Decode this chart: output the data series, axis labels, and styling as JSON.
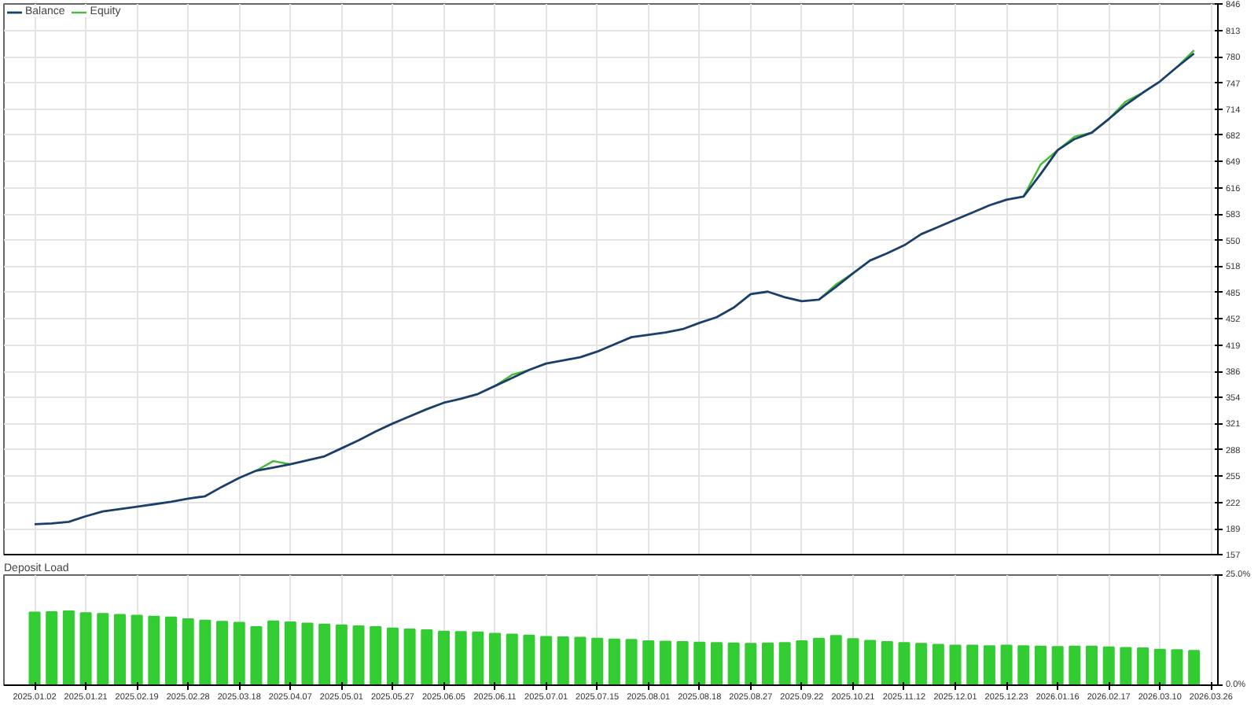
{
  "chart_data": [
    {
      "type": "line",
      "legend": "top left",
      "grid": true,
      "tick_labels": "y",
      "ylim": [
        157,
        846
      ],
      "yticks": [
        157,
        189,
        222,
        255,
        288,
        321,
        354,
        386,
        419,
        452,
        485,
        518,
        550,
        583,
        616,
        649,
        682,
        714,
        747,
        780,
        813,
        846
      ],
      "categories": [
        "2025.01.02",
        null,
        null,
        "2025.01.21",
        null,
        null,
        "2025.02.19",
        null,
        null,
        "2025.02.28",
        null,
        null,
        "2025.03.18",
        null,
        null,
        "2025.04.07",
        null,
        null,
        "2025.05.01",
        null,
        null,
        "2025.05.27",
        null,
        null,
        "2025.06.05",
        null,
        null,
        "2025.06.11",
        null,
        null,
        "2025.07.01",
        null,
        null,
        "2025.07.15",
        null,
        null,
        "2025.08.01",
        null,
        null,
        "2025.08.18",
        null,
        null,
        "2025.08.27",
        null,
        null,
        "2025.09.22",
        null,
        null,
        "2025.10.21",
        null,
        null,
        "2025.11.12",
        null,
        null,
        "2025.12.01",
        null,
        null,
        "2025.12.23",
        null,
        null,
        "2026.01.16",
        null,
        null,
        "2026.02.17",
        null,
        null,
        "2026.03.10",
        null,
        null,
        "2026.03.26"
      ],
      "series": [
        {
          "name": "Balance",
          "color": "#1b3f6b",
          "values": [
            195,
            196,
            198,
            205,
            211,
            214,
            217,
            220,
            223,
            227,
            230,
            242,
            253,
            262,
            266,
            270,
            275,
            280,
            290,
            300,
            311,
            321,
            330,
            339,
            347,
            352,
            358,
            368,
            378,
            388,
            396,
            400,
            404,
            411,
            420,
            429,
            432,
            435,
            439,
            447,
            454,
            466,
            483,
            486,
            479,
            474,
            476,
            492,
            509,
            525,
            534,
            544,
            558,
            567,
            576,
            585,
            594,
            601,
            605,
            633,
            663,
            677,
            685,
            702,
            720,
            735,
            749,
            767,
            784,
            null
          ]
        },
        {
          "name": "Equity",
          "color": "#44bb33",
          "values": [
            null,
            null,
            null,
            null,
            null,
            null,
            null,
            null,
            null,
            null,
            null,
            null,
            null,
            262,
            274,
            270,
            null,
            null,
            null,
            null,
            null,
            null,
            null,
            null,
            null,
            null,
            null,
            368,
            382,
            388,
            null,
            null,
            null,
            null,
            null,
            null,
            null,
            null,
            null,
            null,
            null,
            null,
            null,
            null,
            null,
            null,
            476,
            495,
            509,
            null,
            null,
            null,
            null,
            null,
            null,
            null,
            null,
            null,
            605,
            645,
            663,
            680,
            685,
            702,
            724,
            735,
            null,
            767,
            788,
            null
          ]
        }
      ]
    },
    {
      "type": "bar",
      "title": "Deposit Load",
      "color": "#33cc33",
      "ylim": [
        0,
        25
      ],
      "yticks": [
        {
          "value": 0,
          "label": "0.0%"
        },
        {
          "value": 25,
          "label": "25.0%"
        }
      ],
      "grid": true,
      "categories": [
        "2025.01.02",
        null,
        null,
        "2025.01.21",
        null,
        null,
        "2025.02.19",
        null,
        null,
        "2025.02.28",
        null,
        null,
        "2025.03.18",
        null,
        null,
        "2025.04.07",
        null,
        null,
        "2025.05.01",
        null,
        null,
        "2025.05.27",
        null,
        null,
        "2025.06.05",
        null,
        null,
        "2025.06.11",
        null,
        null,
        "2025.07.01",
        null,
        null,
        "2025.07.15",
        null,
        null,
        "2025.08.01",
        null,
        null,
        "2025.08.18",
        null,
        null,
        "2025.08.27",
        null,
        null,
        "2025.09.22",
        null,
        null,
        "2025.10.21",
        null,
        null,
        "2025.11.12",
        null,
        null,
        "2025.12.01",
        null,
        null,
        "2025.12.23",
        null,
        null,
        "2026.01.16",
        null,
        null,
        "2026.02.17",
        null,
        null,
        "2026.03.10",
        null,
        null,
        "2026.03.26"
      ],
      "values": [
        16.5,
        16.6,
        16.8,
        16.4,
        16.2,
        16.0,
        15.8,
        15.6,
        15.4,
        15.0,
        14.7,
        14.4,
        14.2,
        13.2,
        14.5,
        14.3,
        14.0,
        13.8,
        13.6,
        13.4,
        13.2,
        12.9,
        12.7,
        12.5,
        12.2,
        12.1,
        12.0,
        11.7,
        11.5,
        11.3,
        11.0,
        10.9,
        10.8,
        10.6,
        10.4,
        10.3,
        10.0,
        9.9,
        9.8,
        9.7,
        9.6,
        9.5,
        9.4,
        9.5,
        9.6,
        10.0,
        10.6,
        11.2,
        10.5,
        10.1,
        9.8,
        9.6,
        9.4,
        9.2,
        9.0,
        9.0,
        8.9,
        9.0,
        8.9,
        8.8,
        8.7,
        8.8,
        8.8,
        8.6,
        8.5,
        8.4,
        8.1,
        8.0,
        7.8,
        null
      ]
    }
  ]
}
